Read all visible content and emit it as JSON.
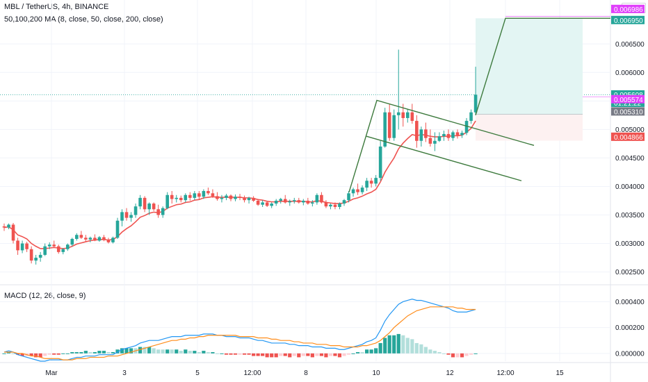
{
  "header": {
    "symbol_line": "MBL / TetherUS, 4h, BINANCE",
    "ma_line": "50,100,200 MA (8, close, 50, close, 200, close)",
    "macd_line": "MACD (12, 26, close, 9)",
    "currency": "USDT"
  },
  "colors": {
    "up": "#26a69a",
    "down": "#ef5350",
    "ma": "#ef5350",
    "pattern": "#3d7a3d",
    "target_zone": "#e3f5f3",
    "macd": "#2196f3",
    "signal": "#ff8c1a",
    "hist_up_strong": "#26a69a",
    "hist_up_weak": "#b2dfdb",
    "hist_down_strong": "#ef5350",
    "hist_down_weak": "#ffcdd2"
  },
  "chart_data": [
    {
      "type": "candlestick",
      "title": "MBL / TetherUS, 4h, BINANCE",
      "y_axis_ticks": [
        "0.002500",
        "0.003000",
        "0.003500",
        "0.004000",
        "0.004500",
        "0.005000",
        "0.005500",
        "0.006000",
        "0.006500"
      ],
      "ylim": [
        0.0023,
        0.0071
      ],
      "x_axis_ticks": [
        "Mar",
        "3",
        "5",
        "12:00",
        "8",
        "10",
        "12",
        "12:00",
        "15"
      ],
      "price_labels": [
        {
          "value": "0.006986",
          "price": 0.006986,
          "color": "#e040fb"
        },
        {
          "value": "0.006950",
          "price": 0.00695,
          "color": "#26a69a"
        },
        {
          "value": "0.005608",
          "price": 0.005608,
          "color": "#26a69a"
        },
        {
          "value": "01:21:22",
          "price": 0.005608,
          "color": "#26a69a",
          "sub": true
        },
        {
          "value": "0.005574",
          "price": 0.005574,
          "color": "#e040fb"
        },
        {
          "value": "0.005310",
          "price": 0.00531,
          "color": "#787b86"
        },
        {
          "value": "0.004866",
          "price": 0.004866,
          "color": "#ef5350"
        }
      ],
      "candles": [
        [
          0.0033,
          0.00335,
          0.00322,
          0.00328
        ],
        [
          0.00328,
          0.00335,
          0.00325,
          0.00333
        ],
        [
          0.00333,
          0.00336,
          0.003,
          0.00305
        ],
        [
          0.00305,
          0.0031,
          0.0028,
          0.00288
        ],
        [
          0.00288,
          0.00305,
          0.00283,
          0.003
        ],
        [
          0.003,
          0.00303,
          0.00285,
          0.0029
        ],
        [
          0.0029,
          0.00295,
          0.00265,
          0.0027
        ],
        [
          0.0027,
          0.0028,
          0.00263,
          0.00275
        ],
        [
          0.00275,
          0.00285,
          0.00268,
          0.0028
        ],
        [
          0.0028,
          0.003,
          0.00278,
          0.00295
        ],
        [
          0.00295,
          0.00302,
          0.0029,
          0.00298
        ],
        [
          0.00298,
          0.00305,
          0.00292,
          0.00295
        ],
        [
          0.00295,
          0.00298,
          0.00282,
          0.00285
        ],
        [
          0.00285,
          0.00292,
          0.00281,
          0.0029
        ],
        [
          0.0029,
          0.003,
          0.00287,
          0.00298
        ],
        [
          0.00298,
          0.0031,
          0.00295,
          0.00308
        ],
        [
          0.00308,
          0.00318,
          0.00305,
          0.00315
        ],
        [
          0.00315,
          0.00322,
          0.00308,
          0.0031
        ],
        [
          0.0031,
          0.00315,
          0.00303,
          0.00307
        ],
        [
          0.00307,
          0.00312,
          0.00302,
          0.0031
        ],
        [
          0.0031,
          0.00316,
          0.00304,
          0.00305
        ],
        [
          0.00305,
          0.00313,
          0.00303,
          0.00311
        ],
        [
          0.00311,
          0.00315,
          0.00304,
          0.00306
        ],
        [
          0.00306,
          0.0031,
          0.003,
          0.00302
        ],
        [
          0.00302,
          0.00312,
          0.003,
          0.0031
        ],
        [
          0.0031,
          0.00345,
          0.00308,
          0.0034
        ],
        [
          0.0034,
          0.0036,
          0.0033,
          0.00355
        ],
        [
          0.00355,
          0.00362,
          0.0034,
          0.00345
        ],
        [
          0.00345,
          0.00355,
          0.00338,
          0.0035
        ],
        [
          0.0035,
          0.0037,
          0.00345,
          0.00365
        ],
        [
          0.00365,
          0.00385,
          0.0036,
          0.0038
        ],
        [
          0.0038,
          0.00383,
          0.00355,
          0.0036
        ],
        [
          0.0036,
          0.00372,
          0.0035,
          0.0037
        ],
        [
          0.0037,
          0.00372,
          0.00357,
          0.0036
        ],
        [
          0.0036,
          0.00368,
          0.00345,
          0.0035
        ],
        [
          0.0035,
          0.00365,
          0.00345,
          0.00362
        ],
        [
          0.00362,
          0.0039,
          0.0036,
          0.00385
        ],
        [
          0.00385,
          0.00392,
          0.0037,
          0.00378
        ],
        [
          0.00378,
          0.00385,
          0.00372,
          0.0038
        ],
        [
          0.0038,
          0.00384,
          0.00372,
          0.00376
        ],
        [
          0.00376,
          0.00388,
          0.00372,
          0.00385
        ],
        [
          0.00385,
          0.0039,
          0.00375,
          0.0038
        ],
        [
          0.0038,
          0.00392,
          0.00376,
          0.00388
        ],
        [
          0.00388,
          0.00392,
          0.00378,
          0.00382
        ],
        [
          0.00382,
          0.00395,
          0.00378,
          0.00392
        ],
        [
          0.00392,
          0.00398,
          0.00385,
          0.00388
        ],
        [
          0.00388,
          0.00395,
          0.0038,
          0.00383
        ],
        [
          0.00383,
          0.0039,
          0.00375,
          0.00378
        ],
        [
          0.00378,
          0.00385,
          0.00372,
          0.0038
        ],
        [
          0.0038,
          0.00387,
          0.00376,
          0.00384
        ],
        [
          0.00384,
          0.00386,
          0.00374,
          0.00378
        ],
        [
          0.00378,
          0.00386,
          0.00374,
          0.00382
        ],
        [
          0.00382,
          0.00387,
          0.00376,
          0.0038
        ],
        [
          0.0038,
          0.00384,
          0.00372,
          0.00376
        ],
        [
          0.00376,
          0.00382,
          0.0037,
          0.0038
        ],
        [
          0.0038,
          0.00383,
          0.00373,
          0.00375
        ],
        [
          0.00375,
          0.00378,
          0.00366,
          0.00368
        ],
        [
          0.00368,
          0.00376,
          0.00364,
          0.00372
        ],
        [
          0.00372,
          0.00375,
          0.00364,
          0.00366
        ],
        [
          0.00366,
          0.00372,
          0.00362,
          0.0037
        ],
        [
          0.0037,
          0.00378,
          0.00366,
          0.00375
        ],
        [
          0.00375,
          0.0038,
          0.0037,
          0.00378
        ],
        [
          0.00378,
          0.00385,
          0.0037,
          0.00372
        ],
        [
          0.00372,
          0.00377,
          0.00366,
          0.00374
        ],
        [
          0.00374,
          0.0038,
          0.0037,
          0.00376
        ],
        [
          0.00376,
          0.0038,
          0.0037,
          0.00372
        ],
        [
          0.00372,
          0.00378,
          0.00367,
          0.00375
        ],
        [
          0.00375,
          0.0038,
          0.00368,
          0.0037
        ],
        [
          0.0037,
          0.00376,
          0.00365,
          0.00372
        ],
        [
          0.00372,
          0.00388,
          0.00368,
          0.00385
        ],
        [
          0.00385,
          0.0039,
          0.0037,
          0.00372
        ],
        [
          0.00372,
          0.00376,
          0.00362,
          0.00365
        ],
        [
          0.00365,
          0.0037,
          0.0036,
          0.00368
        ],
        [
          0.00368,
          0.00372,
          0.0036,
          0.00364
        ],
        [
          0.00364,
          0.00372,
          0.0036,
          0.0037
        ],
        [
          0.0037,
          0.00378,
          0.00366,
          0.00376
        ],
        [
          0.00376,
          0.00392,
          0.00372,
          0.00388
        ],
        [
          0.00388,
          0.00398,
          0.00382,
          0.00395
        ],
        [
          0.00395,
          0.00405,
          0.00385,
          0.0039
        ],
        [
          0.0039,
          0.00402,
          0.00386,
          0.00398
        ],
        [
          0.00398,
          0.00415,
          0.00392,
          0.0041
        ],
        [
          0.0041,
          0.00415,
          0.00398,
          0.00405
        ],
        [
          0.00405,
          0.0042,
          0.004,
          0.00415
        ],
        [
          0.00415,
          0.0048,
          0.0041,
          0.0047
        ],
        [
          0.0047,
          0.00538,
          0.00468,
          0.0053
        ],
        [
          0.0053,
          0.00545,
          0.0048,
          0.00485
        ],
        [
          0.00485,
          0.00535,
          0.0048,
          0.00525
        ],
        [
          0.00525,
          0.0064,
          0.005,
          0.0053
        ],
        [
          0.0053,
          0.00545,
          0.00505,
          0.0052
        ],
        [
          0.0052,
          0.00535,
          0.00512,
          0.0053
        ],
        [
          0.0053,
          0.00545,
          0.0051,
          0.00515
        ],
        [
          0.00515,
          0.00525,
          0.00468,
          0.0048
        ],
        [
          0.0048,
          0.00505,
          0.0047,
          0.005
        ],
        [
          0.005,
          0.00512,
          0.00478,
          0.00485
        ],
        [
          0.00485,
          0.005,
          0.0047,
          0.00475
        ],
        [
          0.00475,
          0.00495,
          0.00462,
          0.0048
        ],
        [
          0.0048,
          0.00495,
          0.00478,
          0.00488
        ],
        [
          0.00488,
          0.00498,
          0.0048,
          0.00492
        ],
        [
          0.00492,
          0.005,
          0.0048,
          0.00485
        ],
        [
          0.00485,
          0.00498,
          0.0048,
          0.00495
        ],
        [
          0.00495,
          0.005,
          0.00484,
          0.0049
        ],
        [
          0.0049,
          0.00498,
          0.00485,
          0.00494
        ],
        [
          0.00494,
          0.0052,
          0.0049,
          0.00515
        ],
        [
          0.00515,
          0.00535,
          0.0051,
          0.0053
        ],
        [
          0.0053,
          0.0061,
          0.00525,
          0.00561
        ]
      ],
      "ma_values": [
        0.00328,
        0.00329,
        0.00324,
        0.00315,
        0.00312,
        0.00308,
        0.003,
        0.00295,
        0.00291,
        0.00291,
        0.00292,
        0.00293,
        0.00292,
        0.00291,
        0.00292,
        0.00295,
        0.00299,
        0.00301,
        0.00303,
        0.00305,
        0.00306,
        0.00307,
        0.00307,
        0.00306,
        0.00307,
        0.00312,
        0.0032,
        0.00326,
        0.00331,
        0.00338,
        0.00346,
        0.00349,
        0.00353,
        0.00355,
        0.00354,
        0.00356,
        0.00362,
        0.00365,
        0.00368,
        0.00369,
        0.00372,
        0.00373,
        0.00376,
        0.00377,
        0.0038,
        0.00381,
        0.00382,
        0.00381,
        0.00381,
        0.00381,
        0.00381,
        0.00381,
        0.00381,
        0.0038,
        0.0038,
        0.00379,
        0.00377,
        0.00376,
        0.00374,
        0.00373,
        0.00373,
        0.00374,
        0.00374,
        0.00374,
        0.00374,
        0.00374,
        0.00374,
        0.00373,
        0.00373,
        0.00375,
        0.00374,
        0.00372,
        0.00371,
        0.0037,
        0.0037,
        0.00371,
        0.00374,
        0.00378,
        0.0038,
        0.00383,
        0.00387,
        0.0039,
        0.00395,
        0.00408,
        0.00425,
        0.00438,
        0.0045,
        0.00466,
        0.00476,
        0.00484,
        0.00491,
        0.00489,
        0.00491,
        0.0049,
        0.00488,
        0.00487,
        0.00487,
        0.00488,
        0.00488,
        0.00489,
        0.00489,
        0.0049,
        0.00495,
        0.00502,
        0.00515
      ],
      "annotations": {
        "flag_pole": [
          [
            0.00385,
            0.00545
          ]
        ],
        "target_price": 0.00695,
        "entry_price": 0.00551
      }
    },
    {
      "type": "macd",
      "title": "MACD (12, 26, close, 9)",
      "y_axis_ticks": [
        "0.000400",
        "0.000200",
        "0.000000"
      ],
      "ylim": [
        -6e-05,
        0.00052
      ],
      "macd": [
        1e-05,
        2e-05,
        1e-05,
        -1e-05,
        -2e-05,
        -3e-05,
        -4e-05,
        -5e-05,
        -6e-05,
        -6e-05,
        -5e-05,
        -5e-05,
        -5e-05,
        -5e-05,
        -5e-05,
        -4e-05,
        -3e-05,
        -3e-05,
        -2e-05,
        -2e-05,
        -2e-05,
        -1e-05,
        -1e-05,
        -1e-05,
        -1e-05,
        1e-05,
        3e-05,
        4e-05,
        5e-05,
        6e-05,
        8e-05,
        9e-05,
        0.0001,
        0.0001,
        0.0001,
        0.00011,
        0.00012,
        0.00013,
        0.00013,
        0.00013,
        0.00014,
        0.00014,
        0.00014,
        0.00014,
        0.00015,
        0.00015,
        0.00015,
        0.00014,
        0.00014,
        0.00013,
        0.00013,
        0.00013,
        0.00012,
        0.00012,
        0.00012,
        0.00011,
        0.0001,
        0.0001,
        9e-05,
        8e-05,
        8e-05,
        8e-05,
        8e-05,
        7e-05,
        7e-05,
        6e-05,
        6e-05,
        6e-05,
        5e-05,
        5e-05,
        5e-05,
        4e-05,
        4e-05,
        4e-05,
        3e-05,
        3e-05,
        4e-05,
        5e-05,
        6e-05,
        7e-05,
        9e-05,
        0.0001,
        0.00012,
        0.00018,
        0.00025,
        0.0003,
        0.00034,
        0.00038,
        0.0004,
        0.00041,
        0.00042,
        0.00041,
        0.00041,
        0.0004,
        0.00039,
        0.00038,
        0.00037,
        0.00036,
        0.00035,
        0.00033,
        0.00032,
        0.00032,
        0.00032,
        0.00033,
        0.00034
      ],
      "signal": [
        1e-05,
        1e-05,
        1e-05,
        0.0,
        0.0,
        -1e-05,
        -2e-05,
        -2e-05,
        -3e-05,
        -4e-05,
        -4e-05,
        -4e-05,
        -4e-05,
        -5e-05,
        -5e-05,
        -5e-05,
        -4e-05,
        -4e-05,
        -4e-05,
        -3e-05,
        -3e-05,
        -3e-05,
        -3e-05,
        -2e-05,
        -2e-05,
        -2e-05,
        -1e-05,
        0.0,
        1e-05,
        2e-05,
        3e-05,
        4e-05,
        5e-05,
        6e-05,
        7e-05,
        8e-05,
        9e-05,
        0.0001,
        0.0001,
        0.00011,
        0.00011,
        0.00012,
        0.00012,
        0.00013,
        0.00013,
        0.00014,
        0.00014,
        0.00014,
        0.00014,
        0.00014,
        0.00014,
        0.00014,
        0.00013,
        0.00013,
        0.00013,
        0.00013,
        0.00012,
        0.00012,
        0.00012,
        0.00011,
        0.00011,
        0.0001,
        0.0001,
        0.0001,
        9e-05,
        9e-05,
        8e-05,
        8e-05,
        8e-05,
        7e-05,
        7e-05,
        7e-05,
        6e-05,
        6e-05,
        6e-05,
        5e-05,
        5e-05,
        5e-05,
        5e-05,
        6e-05,
        6e-05,
        7e-05,
        8e-05,
        0.0001,
        0.00013,
        0.00016,
        0.0002,
        0.00023,
        0.00026,
        0.00029,
        0.00031,
        0.00033,
        0.00034,
        0.00035,
        0.00036,
        0.00036,
        0.00036,
        0.00036,
        0.00036,
        0.00036,
        0.00035,
        0.00035,
        0.00034,
        0.00034,
        0.00034
      ]
    }
  ]
}
